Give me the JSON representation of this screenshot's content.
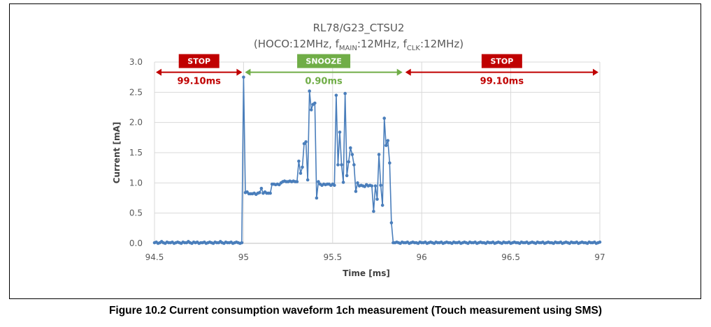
{
  "figure": {
    "caption": "Figure 10.2 Current consumption waveform 1ch measurement (Touch measurement using SMS)"
  },
  "chart_data": {
    "type": "line",
    "title_line1": "RL78/G23_CTSU2",
    "title_line2": {
      "part1": "(HOCO:12MHz, f",
      "sub1": "MAIN",
      "part2": ":12MHz, f",
      "sub2": "CLK",
      "part3": ":12MHz)"
    },
    "xlabel": "Time [ms]",
    "ylabel": "Current [mA]",
    "xlim": [
      94.5,
      97
    ],
    "ylim": [
      0,
      3.0
    ],
    "x_ticks": [
      94.5,
      95,
      95.5,
      96,
      96.5,
      97
    ],
    "x_tick_labels": [
      "94.5",
      "95",
      "95.5",
      "96",
      "96.5",
      "97"
    ],
    "y_ticks": [
      0,
      0.5,
      1.0,
      1.5,
      2.0,
      2.5,
      3.0
    ],
    "y_tick_labels": [
      "0.0",
      "0.5",
      "1.0",
      "1.5",
      "2.0",
      "2.5",
      "3.0"
    ],
    "grid": true,
    "series_color": "#4a7ebb",
    "annotations": [
      {
        "label": "STOP",
        "duration": "99.10ms",
        "x_start": 94.5,
        "x_end": 95.0,
        "color": "#c00000",
        "y": 2.82
      },
      {
        "label": "SNOOZE",
        "duration": "0.90ms",
        "x_start": 95.0,
        "x_end": 95.9,
        "color": "#70ad47",
        "y": 2.82
      },
      {
        "label": "STOP",
        "duration": "99.10ms",
        "x_start": 95.9,
        "x_end": 97.0,
        "color": "#c00000",
        "y": 2.82
      }
    ],
    "series": [
      {
        "points": [
          [
            94.5,
            0.01
          ],
          [
            94.51,
            0.02
          ],
          [
            94.52,
            0.0
          ],
          [
            94.53,
            0.01
          ],
          [
            94.54,
            0.03
          ],
          [
            94.55,
            0.01
          ],
          [
            94.56,
            0.0
          ],
          [
            94.57,
            0.02
          ],
          [
            94.58,
            0.01
          ],
          [
            94.59,
            0.01
          ],
          [
            94.6,
            0.02
          ],
          [
            94.61,
            0.0
          ],
          [
            94.62,
            0.01
          ],
          [
            94.63,
            0.02
          ],
          [
            94.64,
            0.01
          ],
          [
            94.65,
            0.0
          ],
          [
            94.66,
            0.02
          ],
          [
            94.67,
            0.01
          ],
          [
            94.68,
            0.01
          ],
          [
            94.69,
            0.03
          ],
          [
            94.7,
            0.01
          ],
          [
            94.71,
            0.0
          ],
          [
            94.72,
            0.02
          ],
          [
            94.73,
            0.01
          ],
          [
            94.74,
            0.02
          ],
          [
            94.75,
            0.0
          ],
          [
            94.76,
            0.01
          ],
          [
            94.77,
            0.01
          ],
          [
            94.78,
            0.02
          ],
          [
            94.79,
            0.0
          ],
          [
            94.8,
            0.01
          ],
          [
            94.81,
            0.02
          ],
          [
            94.82,
            0.01
          ],
          [
            94.83,
            0.0
          ],
          [
            94.84,
            0.02
          ],
          [
            94.85,
            0.01
          ],
          [
            94.86,
            0.01
          ],
          [
            94.87,
            0.03
          ],
          [
            94.88,
            0.01
          ],
          [
            94.89,
            0.0
          ],
          [
            94.9,
            0.02
          ],
          [
            94.91,
            0.01
          ],
          [
            94.92,
            0.01
          ],
          [
            94.93,
            0.02
          ],
          [
            94.94,
            0.0
          ],
          [
            94.95,
            0.01
          ],
          [
            94.96,
            0.02
          ],
          [
            94.97,
            0.01
          ],
          [
            94.98,
            0.0
          ],
          [
            94.99,
            0.01
          ],
          [
            95.0,
            2.75
          ],
          [
            95.01,
            0.84
          ],
          [
            95.02,
            0.85
          ],
          [
            95.03,
            0.82
          ],
          [
            95.04,
            0.82
          ],
          [
            95.05,
            0.82
          ],
          [
            95.06,
            0.83
          ],
          [
            95.07,
            0.81
          ],
          [
            95.08,
            0.83
          ],
          [
            95.09,
            0.84
          ],
          [
            95.1,
            0.91
          ],
          [
            95.11,
            0.83
          ],
          [
            95.12,
            0.85
          ],
          [
            95.13,
            0.83
          ],
          [
            95.14,
            0.83
          ],
          [
            95.15,
            0.83
          ],
          [
            95.16,
            0.98
          ],
          [
            95.17,
            0.98
          ],
          [
            95.18,
            0.97
          ],
          [
            95.19,
            0.98
          ],
          [
            95.2,
            0.97
          ],
          [
            95.21,
            1.0
          ],
          [
            95.22,
            1.02
          ],
          [
            95.23,
            1.03
          ],
          [
            95.24,
            1.02
          ],
          [
            95.25,
            1.02
          ],
          [
            95.26,
            1.03
          ],
          [
            95.27,
            1.02
          ],
          [
            95.28,
            1.03
          ],
          [
            95.29,
            1.02
          ],
          [
            95.3,
            1.02
          ],
          [
            95.31,
            1.36
          ],
          [
            95.32,
            1.16
          ],
          [
            95.33,
            1.26
          ],
          [
            95.34,
            1.65
          ],
          [
            95.35,
            1.68
          ],
          [
            95.36,
            1.05
          ],
          [
            95.37,
            2.52
          ],
          [
            95.38,
            2.21
          ],
          [
            95.39,
            2.3
          ],
          [
            95.4,
            2.32
          ],
          [
            95.41,
            0.75
          ],
          [
            95.42,
            1.02
          ],
          [
            95.43,
            0.98
          ],
          [
            95.44,
            0.96
          ],
          [
            95.45,
            0.98
          ],
          [
            95.46,
            0.97
          ],
          [
            95.47,
            0.98
          ],
          [
            95.48,
            0.98
          ],
          [
            95.49,
            0.96
          ],
          [
            95.5,
            0.98
          ],
          [
            95.51,
            0.96
          ],
          [
            95.52,
            2.45
          ],
          [
            95.53,
            1.3
          ],
          [
            95.54,
            1.84
          ],
          [
            95.55,
            1.3
          ],
          [
            95.56,
            1.01
          ],
          [
            95.57,
            2.48
          ],
          [
            95.58,
            1.12
          ],
          [
            95.59,
            1.35
          ],
          [
            95.6,
            1.58
          ],
          [
            95.61,
            1.47
          ],
          [
            95.62,
            1.3
          ],
          [
            95.63,
            0.86
          ],
          [
            95.64,
            1.0
          ],
          [
            95.65,
            0.95
          ],
          [
            95.66,
            0.96
          ],
          [
            95.67,
            0.95
          ],
          [
            95.68,
            0.94
          ],
          [
            95.69,
            0.97
          ],
          [
            95.7,
            0.95
          ],
          [
            95.71,
            0.96
          ],
          [
            95.72,
            0.95
          ],
          [
            95.73,
            0.53
          ],
          [
            95.74,
            0.95
          ],
          [
            95.75,
            0.73
          ],
          [
            95.76,
            1.47
          ],
          [
            95.77,
            0.96
          ],
          [
            95.78,
            0.63
          ],
          [
            95.79,
            2.07
          ],
          [
            95.8,
            1.62
          ],
          [
            95.81,
            1.7
          ],
          [
            95.82,
            1.33
          ],
          [
            95.83,
            0.34
          ],
          [
            95.84,
            0.01
          ],
          [
            95.85,
            0.01
          ],
          [
            95.86,
            0.02
          ],
          [
            95.87,
            0.01
          ],
          [
            95.88,
            0.0
          ],
          [
            95.89,
            0.02
          ],
          [
            95.9,
            0.01
          ],
          [
            95.91,
            0.01
          ],
          [
            95.92,
            0.02
          ],
          [
            95.93,
            0.0
          ],
          [
            95.94,
            0.01
          ],
          [
            95.95,
            0.02
          ],
          [
            95.96,
            0.01
          ],
          [
            95.97,
            0.01
          ],
          [
            95.98,
            0.0
          ],
          [
            95.99,
            0.02
          ],
          [
            96.0,
            0.01
          ],
          [
            96.01,
            0.01
          ],
          [
            96.02,
            0.02
          ],
          [
            96.03,
            0.0
          ],
          [
            96.04,
            0.01
          ],
          [
            96.05,
            0.02
          ],
          [
            96.06,
            0.01
          ],
          [
            96.07,
            0.0
          ],
          [
            96.08,
            0.02
          ],
          [
            96.09,
            0.01
          ],
          [
            96.1,
            0.01
          ],
          [
            96.11,
            0.02
          ],
          [
            96.12,
            0.0
          ],
          [
            96.13,
            0.01
          ],
          [
            96.14,
            0.02
          ],
          [
            96.15,
            0.01
          ],
          [
            96.16,
            0.01
          ],
          [
            96.17,
            0.0
          ],
          [
            96.18,
            0.02
          ],
          [
            96.19,
            0.01
          ],
          [
            96.2,
            0.01
          ],
          [
            96.21,
            0.02
          ],
          [
            96.22,
            0.0
          ],
          [
            96.23,
            0.01
          ],
          [
            96.24,
            0.02
          ],
          [
            96.25,
            0.01
          ],
          [
            96.26,
            0.0
          ],
          [
            96.27,
            0.02
          ],
          [
            96.28,
            0.01
          ],
          [
            96.29,
            0.01
          ],
          [
            96.3,
            0.02
          ],
          [
            96.31,
            0.0
          ],
          [
            96.32,
            0.01
          ],
          [
            96.33,
            0.02
          ],
          [
            96.34,
            0.01
          ],
          [
            96.35,
            0.01
          ],
          [
            96.36,
            0.0
          ],
          [
            96.37,
            0.02
          ],
          [
            96.38,
            0.01
          ],
          [
            96.39,
            0.01
          ],
          [
            96.4,
            0.02
          ],
          [
            96.41,
            0.0
          ],
          [
            96.42,
            0.01
          ],
          [
            96.43,
            0.02
          ],
          [
            96.44,
            0.01
          ],
          [
            96.45,
            0.0
          ],
          [
            96.46,
            0.02
          ],
          [
            96.47,
            0.01
          ],
          [
            96.48,
            0.01
          ],
          [
            96.49,
            0.02
          ],
          [
            96.5,
            0.0
          ],
          [
            96.51,
            0.01
          ],
          [
            96.52,
            0.02
          ],
          [
            96.53,
            0.01
          ],
          [
            96.54,
            0.01
          ],
          [
            96.55,
            0.0
          ],
          [
            96.56,
            0.02
          ],
          [
            96.57,
            0.01
          ],
          [
            96.58,
            0.01
          ],
          [
            96.59,
            0.02
          ],
          [
            96.6,
            0.0
          ],
          [
            96.61,
            0.01
          ],
          [
            96.62,
            0.02
          ],
          [
            96.63,
            0.01
          ],
          [
            96.64,
            0.0
          ],
          [
            96.65,
            0.02
          ],
          [
            96.66,
            0.01
          ],
          [
            96.67,
            0.01
          ],
          [
            96.68,
            0.02
          ],
          [
            96.69,
            0.0
          ],
          [
            96.7,
            0.01
          ],
          [
            96.71,
            0.02
          ],
          [
            96.72,
            0.01
          ],
          [
            96.73,
            0.01
          ],
          [
            96.74,
            0.0
          ],
          [
            96.75,
            0.02
          ],
          [
            96.76,
            0.01
          ],
          [
            96.77,
            0.01
          ],
          [
            96.78,
            0.02
          ],
          [
            96.79,
            0.0
          ],
          [
            96.8,
            0.01
          ],
          [
            96.81,
            0.02
          ],
          [
            96.82,
            0.01
          ],
          [
            96.83,
            0.0
          ],
          [
            96.84,
            0.02
          ],
          [
            96.85,
            0.01
          ],
          [
            96.86,
            0.01
          ],
          [
            96.87,
            0.02
          ],
          [
            96.88,
            0.0
          ],
          [
            96.89,
            0.01
          ],
          [
            96.9,
            0.02
          ],
          [
            96.91,
            0.01
          ],
          [
            96.92,
            0.01
          ],
          [
            96.93,
            0.0
          ],
          [
            96.94,
            0.02
          ],
          [
            96.95,
            0.01
          ],
          [
            96.96,
            0.01
          ],
          [
            96.97,
            0.02
          ],
          [
            96.98,
            0.0
          ],
          [
            96.99,
            0.01
          ],
          [
            97.0,
            0.02
          ]
        ]
      }
    ]
  }
}
